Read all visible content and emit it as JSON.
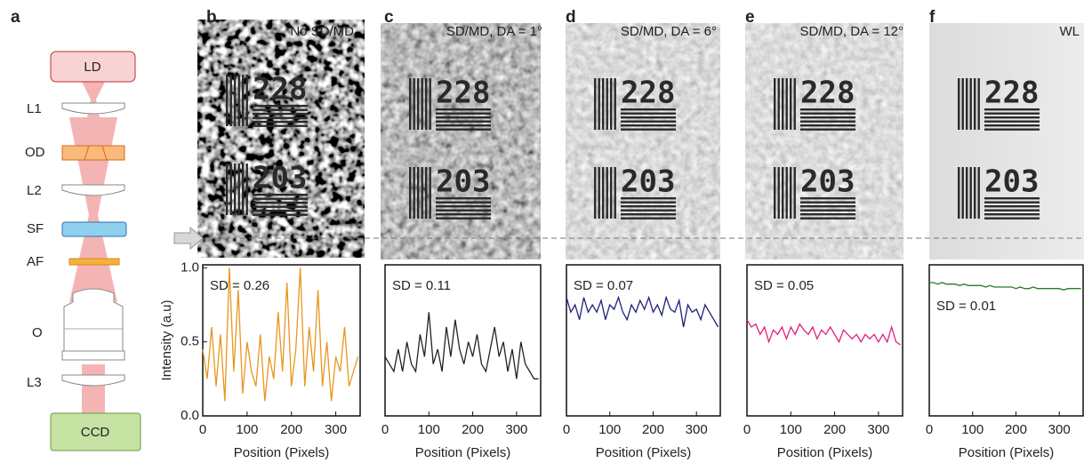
{
  "figure_label": "a",
  "diagram": {
    "nodes": [
      "LD",
      "L1",
      "OD",
      "L2",
      "SF",
      "AF",
      "O",
      "L3",
      "CCD"
    ]
  },
  "target_labels": [
    "228",
    "203"
  ],
  "chart_data": [
    {
      "type": "line",
      "panel": "b",
      "title": "No SD/MD",
      "annotation": "SD = 0.26",
      "xlabel": "Position (Pixels)",
      "ylabel": "Intensity (a.u)",
      "x": [
        0,
        10,
        20,
        30,
        40,
        50,
        60,
        70,
        80,
        90,
        100,
        110,
        120,
        130,
        140,
        150,
        160,
        170,
        180,
        190,
        200,
        210,
        220,
        230,
        240,
        250,
        260,
        270,
        280,
        290,
        300,
        310,
        320,
        330,
        340,
        350
      ],
      "series": [
        {
          "color": "#e8961e",
          "values": [
            0.45,
            0.25,
            0.6,
            0.2,
            0.55,
            0.1,
            1.0,
            0.3,
            0.85,
            0.15,
            0.5,
            0.3,
            0.2,
            0.55,
            0.1,
            0.4,
            0.25,
            0.7,
            0.3,
            0.9,
            0.2,
            0.45,
            1.0,
            0.2,
            0.6,
            0.3,
            0.85,
            0.2,
            0.5,
            0.1,
            0.4,
            0.3,
            0.6,
            0.2,
            0.3,
            0.4
          ]
        }
      ],
      "xlim": [
        0,
        355
      ],
      "xticks": [
        0,
        100,
        200,
        300
      ],
      "ylim": [
        0,
        1.02
      ],
      "yticks": [
        {
          "value": 0,
          "label": "0.0"
        },
        0.5,
        {
          "value": 1,
          "label": "1.0"
        }
      ]
    },
    {
      "type": "line",
      "panel": "c",
      "title": "SD/MD, DA = 1°",
      "annotation": "SD = 0.11",
      "xlabel": "Position (Pixels)",
      "x": [
        0,
        10,
        20,
        30,
        40,
        50,
        60,
        70,
        80,
        90,
        100,
        110,
        120,
        130,
        140,
        150,
        160,
        170,
        180,
        190,
        200,
        210,
        220,
        230,
        240,
        250,
        260,
        270,
        280,
        290,
        300,
        310,
        320,
        330,
        340,
        350
      ],
      "series": [
        {
          "color": "#222222",
          "values": [
            0.4,
            0.35,
            0.3,
            0.45,
            0.3,
            0.5,
            0.35,
            0.3,
            0.55,
            0.4,
            0.7,
            0.35,
            0.45,
            0.3,
            0.6,
            0.4,
            0.65,
            0.45,
            0.35,
            0.5,
            0.4,
            0.55,
            0.35,
            0.3,
            0.45,
            0.6,
            0.4,
            0.5,
            0.3,
            0.45,
            0.25,
            0.5,
            0.35,
            0.3,
            0.25,
            0.25
          ]
        }
      ],
      "xlim": [
        0,
        355
      ],
      "xticks": [
        0,
        100,
        200,
        300
      ],
      "ylim": [
        0,
        1.02
      ]
    },
    {
      "type": "line",
      "panel": "d",
      "title": "SD/MD, DA = 6°",
      "annotation": "SD = 0.07",
      "xlabel": "Position (Pixels)",
      "x": [
        0,
        10,
        20,
        30,
        40,
        50,
        60,
        70,
        80,
        90,
        100,
        110,
        120,
        130,
        140,
        150,
        160,
        170,
        180,
        190,
        200,
        210,
        220,
        230,
        240,
        250,
        260,
        270,
        280,
        290,
        300,
        310,
        320,
        330,
        340,
        350
      ],
      "series": [
        {
          "color": "#1f1f7a",
          "values": [
            0.8,
            0.7,
            0.75,
            0.65,
            0.8,
            0.7,
            0.75,
            0.7,
            0.78,
            0.65,
            0.75,
            0.72,
            0.8,
            0.7,
            0.65,
            0.75,
            0.7,
            0.78,
            0.72,
            0.8,
            0.7,
            0.75,
            0.68,
            0.8,
            0.72,
            0.7,
            0.78,
            0.6,
            0.75,
            0.7,
            0.72,
            0.65,
            0.75,
            0.7,
            0.65,
            0.6
          ]
        }
      ],
      "xlim": [
        0,
        355
      ],
      "xticks": [
        0,
        100,
        200,
        300
      ],
      "ylim": [
        0,
        1.02
      ]
    },
    {
      "type": "line",
      "panel": "e",
      "title": "SD/MD, DA = 12°",
      "annotation": "SD = 0.05",
      "xlabel": "Position (Pixels)",
      "x": [
        0,
        10,
        20,
        30,
        40,
        50,
        60,
        70,
        80,
        90,
        100,
        110,
        120,
        130,
        140,
        150,
        160,
        170,
        180,
        190,
        200,
        210,
        220,
        230,
        240,
        250,
        260,
        270,
        280,
        290,
        300,
        310,
        320,
        330,
        340,
        350
      ],
      "series": [
        {
          "color": "#e0207a",
          "values": [
            0.65,
            0.6,
            0.62,
            0.55,
            0.6,
            0.5,
            0.58,
            0.55,
            0.6,
            0.52,
            0.6,
            0.55,
            0.62,
            0.58,
            0.55,
            0.6,
            0.52,
            0.58,
            0.55,
            0.6,
            0.55,
            0.5,
            0.58,
            0.55,
            0.52,
            0.55,
            0.5,
            0.55,
            0.52,
            0.55,
            0.5,
            0.55,
            0.5,
            0.6,
            0.5,
            0.48
          ]
        }
      ],
      "xlim": [
        0,
        355
      ],
      "xticks": [
        0,
        100,
        200,
        300
      ],
      "ylim": [
        0,
        1.02
      ]
    },
    {
      "type": "line",
      "panel": "f",
      "title": "WL",
      "annotation": "SD = 0.01",
      "xlabel": "Position (Pixels)",
      "x": [
        0,
        10,
        20,
        30,
        40,
        50,
        60,
        70,
        80,
        90,
        100,
        110,
        120,
        130,
        140,
        150,
        160,
        170,
        180,
        190,
        200,
        210,
        220,
        230,
        240,
        250,
        260,
        270,
        280,
        290,
        300,
        310,
        320,
        330,
        340,
        350
      ],
      "series": [
        {
          "color": "#2a7a2a",
          "values": [
            0.9,
            0.9,
            0.89,
            0.9,
            0.89,
            0.89,
            0.89,
            0.88,
            0.89,
            0.88,
            0.88,
            0.88,
            0.88,
            0.87,
            0.88,
            0.87,
            0.87,
            0.87,
            0.87,
            0.87,
            0.86,
            0.87,
            0.86,
            0.86,
            0.87,
            0.86,
            0.86,
            0.86,
            0.86,
            0.86,
            0.86,
            0.85,
            0.86,
            0.86,
            0.86,
            0.86
          ]
        }
      ],
      "xlim": [
        0,
        355
      ],
      "xticks": [
        0,
        100,
        200,
        300
      ],
      "ylim": [
        0,
        1.02
      ]
    }
  ]
}
